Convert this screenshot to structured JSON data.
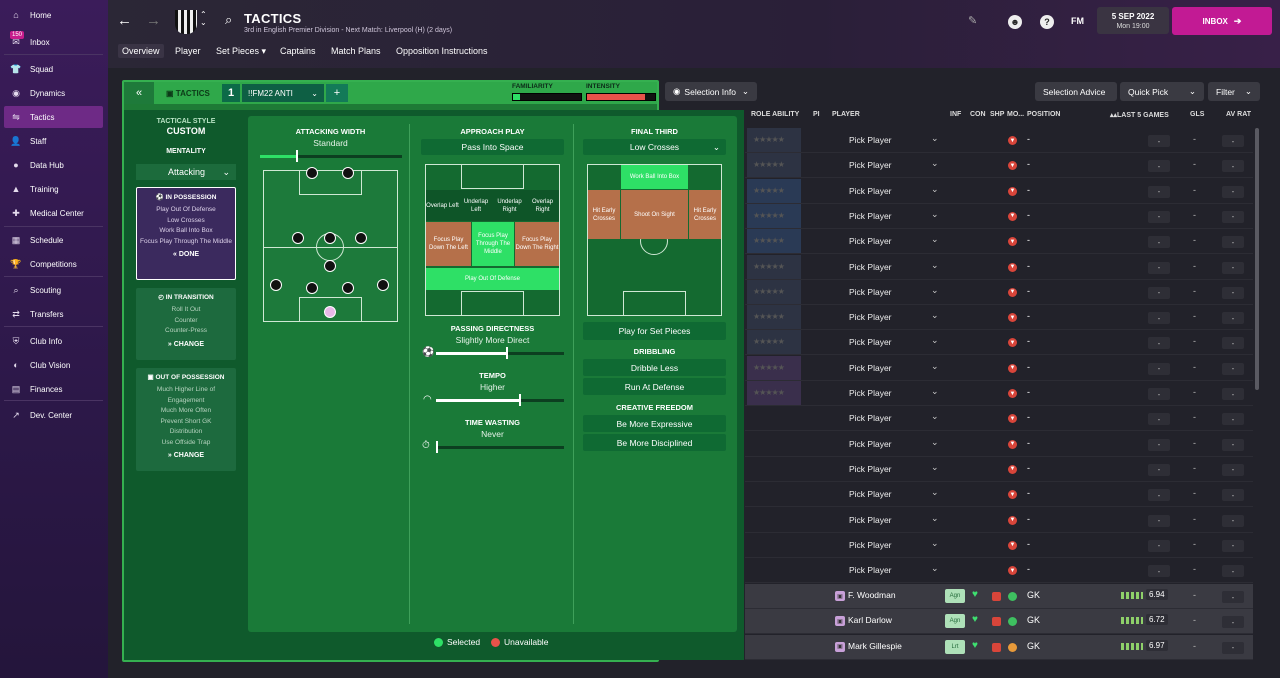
{
  "sidebar": {
    "items": [
      {
        "label": "Home",
        "icon": "home-icon"
      },
      {
        "label": "Inbox",
        "icon": "inbox-icon"
      },
      {
        "label": "Squad",
        "icon": "shirt-icon"
      },
      {
        "label": "Dynamics",
        "icon": "dynamics-icon"
      },
      {
        "label": "Tactics",
        "icon": "tactics-icon",
        "active": true
      },
      {
        "label": "Staff",
        "icon": "staff-icon"
      },
      {
        "label": "Data Hub",
        "icon": "data-hub-icon"
      },
      {
        "label": "Training",
        "icon": "training-icon"
      },
      {
        "label": "Medical Center",
        "icon": "medical-icon"
      },
      {
        "label": "Schedule",
        "icon": "calendar-icon"
      },
      {
        "label": "Competitions",
        "icon": "trophy-icon"
      },
      {
        "label": "Scouting",
        "icon": "scouting-icon"
      },
      {
        "label": "Transfers",
        "icon": "transfers-icon"
      },
      {
        "label": "Club Info",
        "icon": "club-info-icon"
      },
      {
        "label": "Club Vision",
        "icon": "club-vision-icon"
      },
      {
        "label": "Finances",
        "icon": "finances-icon"
      },
      {
        "label": "Dev. Center",
        "icon": "dev-center-icon"
      }
    ],
    "inbox_badge": "150"
  },
  "header": {
    "title": "TACTICS",
    "subtitle": "3rd in English Premier Division - Next Match: Liverpool (H) (2 days)",
    "tabs": [
      "Overview",
      "Player",
      "Set Pieces",
      "Captains",
      "Match Plans",
      "Opposition Instructions"
    ],
    "fm_label": "FM",
    "date": "5 SEP 2022",
    "time": "Mon 19:00",
    "inbox_button": "INBOX"
  },
  "tactic_bar": {
    "label": "TACTICS",
    "number": "1",
    "name": "!!FM22 ANTI",
    "familiarity_label": "FAMILIARITY",
    "intensity_label": "INTENSITY",
    "familiarity_level": 0.1,
    "intensity_level": 0.85
  },
  "left_panel": {
    "tactical_style_label": "TACTICAL STYLE",
    "tactical_style": "CUSTOM",
    "mentality_label": "MENTALITY",
    "mentality": "Attacking",
    "in_possession": {
      "title": "IN POSSESSION",
      "lines": [
        "Play Out Of Defense",
        "Low Crosses",
        "Work Ball Into Box",
        "Focus Play Through The Middle"
      ],
      "button": "DONE"
    },
    "in_transition": {
      "title": "IN TRANSITION",
      "lines": [
        "Roll It Out",
        "Counter",
        "Counter-Press"
      ],
      "button": "CHANGE"
    },
    "out_of_possession": {
      "title": "OUT OF POSSESSION",
      "lines": [
        "Much Higher Line of Engagement",
        "Much More Often",
        "Prevent Short GK Distribution",
        "Use Offside Trap"
      ],
      "button": "CHANGE"
    }
  },
  "attacking_width": {
    "title": "ATTACKING WIDTH",
    "value": "Standard",
    "level": 0.25
  },
  "approach_play": {
    "title": "APPROACH PLAY",
    "dropdown": "Pass Into Space",
    "zones": [
      "Overlap Left",
      "Underlap Left",
      "Underlap Right",
      "Overlap Right",
      "Focus Play Down The Left",
      "Focus Play Through The Middle",
      "Focus Play Down The Right",
      "Play Out Of Defense"
    ],
    "passing_title": "PASSING DIRECTNESS",
    "passing_value": "Slightly More Direct",
    "passing_level": 0.55,
    "tempo_title": "TEMPO",
    "tempo_value": "Higher",
    "tempo_level": 0.65,
    "time_wasting_title": "TIME WASTING",
    "time_wasting_value": "Never",
    "time_wasting_level": 0.0
  },
  "final_third": {
    "title": "FINAL THIRD",
    "dropdown": "Low Crosses",
    "zones": [
      "Work Ball Into Box",
      "Hit Early Crosses",
      "Shoot On Sight",
      "Hit Early Crosses"
    ],
    "set_pieces_button": "Play for Set Pieces",
    "dribbling_title": "DRIBBLING",
    "dribbling_options": [
      "Dribble Less",
      "Run At Defense"
    ],
    "creative_title": "CREATIVE FREEDOM",
    "creative_options": [
      "Be More Expressive",
      "Be More Disciplined"
    ]
  },
  "legend": {
    "selected": "Selected",
    "unavailable": "Unavailable",
    "selected_color": "#2ee066",
    "unavailable_color": "#e8524a"
  },
  "right": {
    "selection_info": "Selection Info",
    "selection_advice": "Selection Advice",
    "quick_pick": "Quick Pick",
    "filter": "Filter",
    "columns": [
      "ROLE ABILITY",
      "PI",
      "PLAYER",
      "INF",
      "CON",
      "SHP",
      "MO...",
      "POSITION",
      "LAST 5 GAMES",
      "GLS",
      "AV RAT"
    ],
    "pick_label": "Pick Player",
    "dash": "-",
    "gk_rows": [
      {
        "name": "F. Woodman",
        "tag": "Agn",
        "pos": "GK",
        "rating": "6.94"
      },
      {
        "name": "Karl Darlow",
        "tag": "Agn",
        "pos": "GK",
        "rating": "6.72"
      },
      {
        "name": "Mark Gillespie",
        "tag": "Lrt",
        "pos": "GK",
        "rating": "6.97"
      }
    ]
  }
}
